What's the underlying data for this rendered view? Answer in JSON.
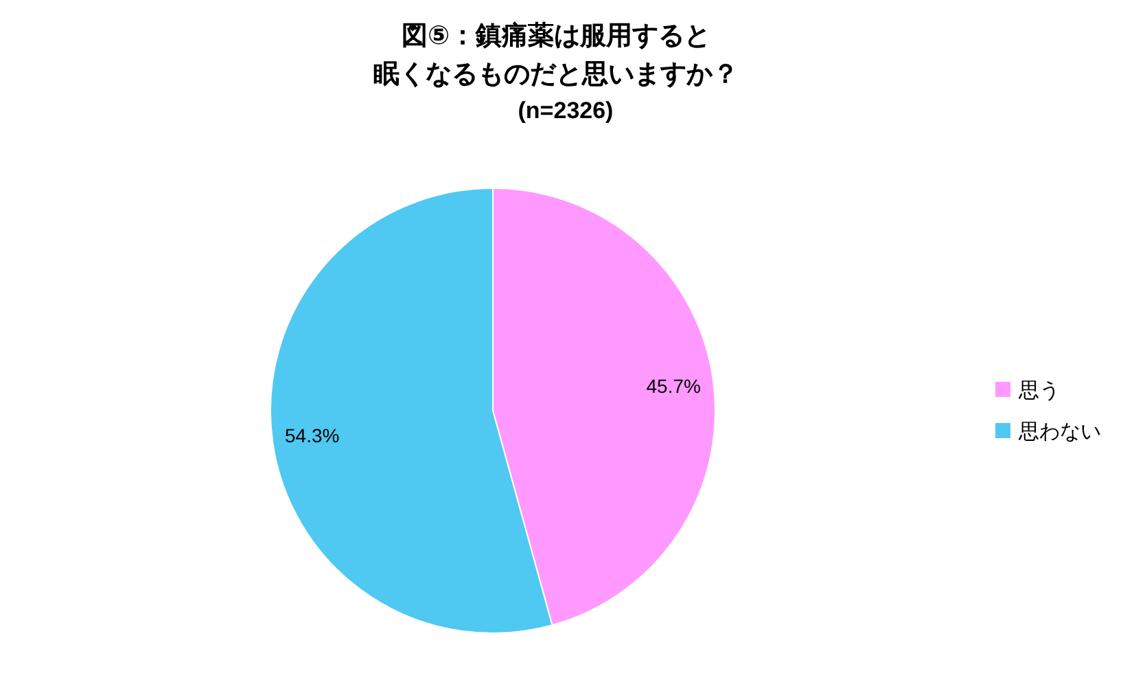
{
  "chart_data": {
    "type": "pie",
    "title": "図⑤：鎮痛薬は服用すると",
    "subtitle": "眠くなるものだと思いますか？",
    "annotations": [
      "(n=2326)"
    ],
    "categories": [
      "思う",
      "思わない"
    ],
    "values": [
      45.7,
      54.3
    ],
    "colors": [
      "#ff99ff",
      "#4fc8f2"
    ],
    "value_labels": [
      "45.7%",
      "54.3%"
    ],
    "legend": "right"
  }
}
